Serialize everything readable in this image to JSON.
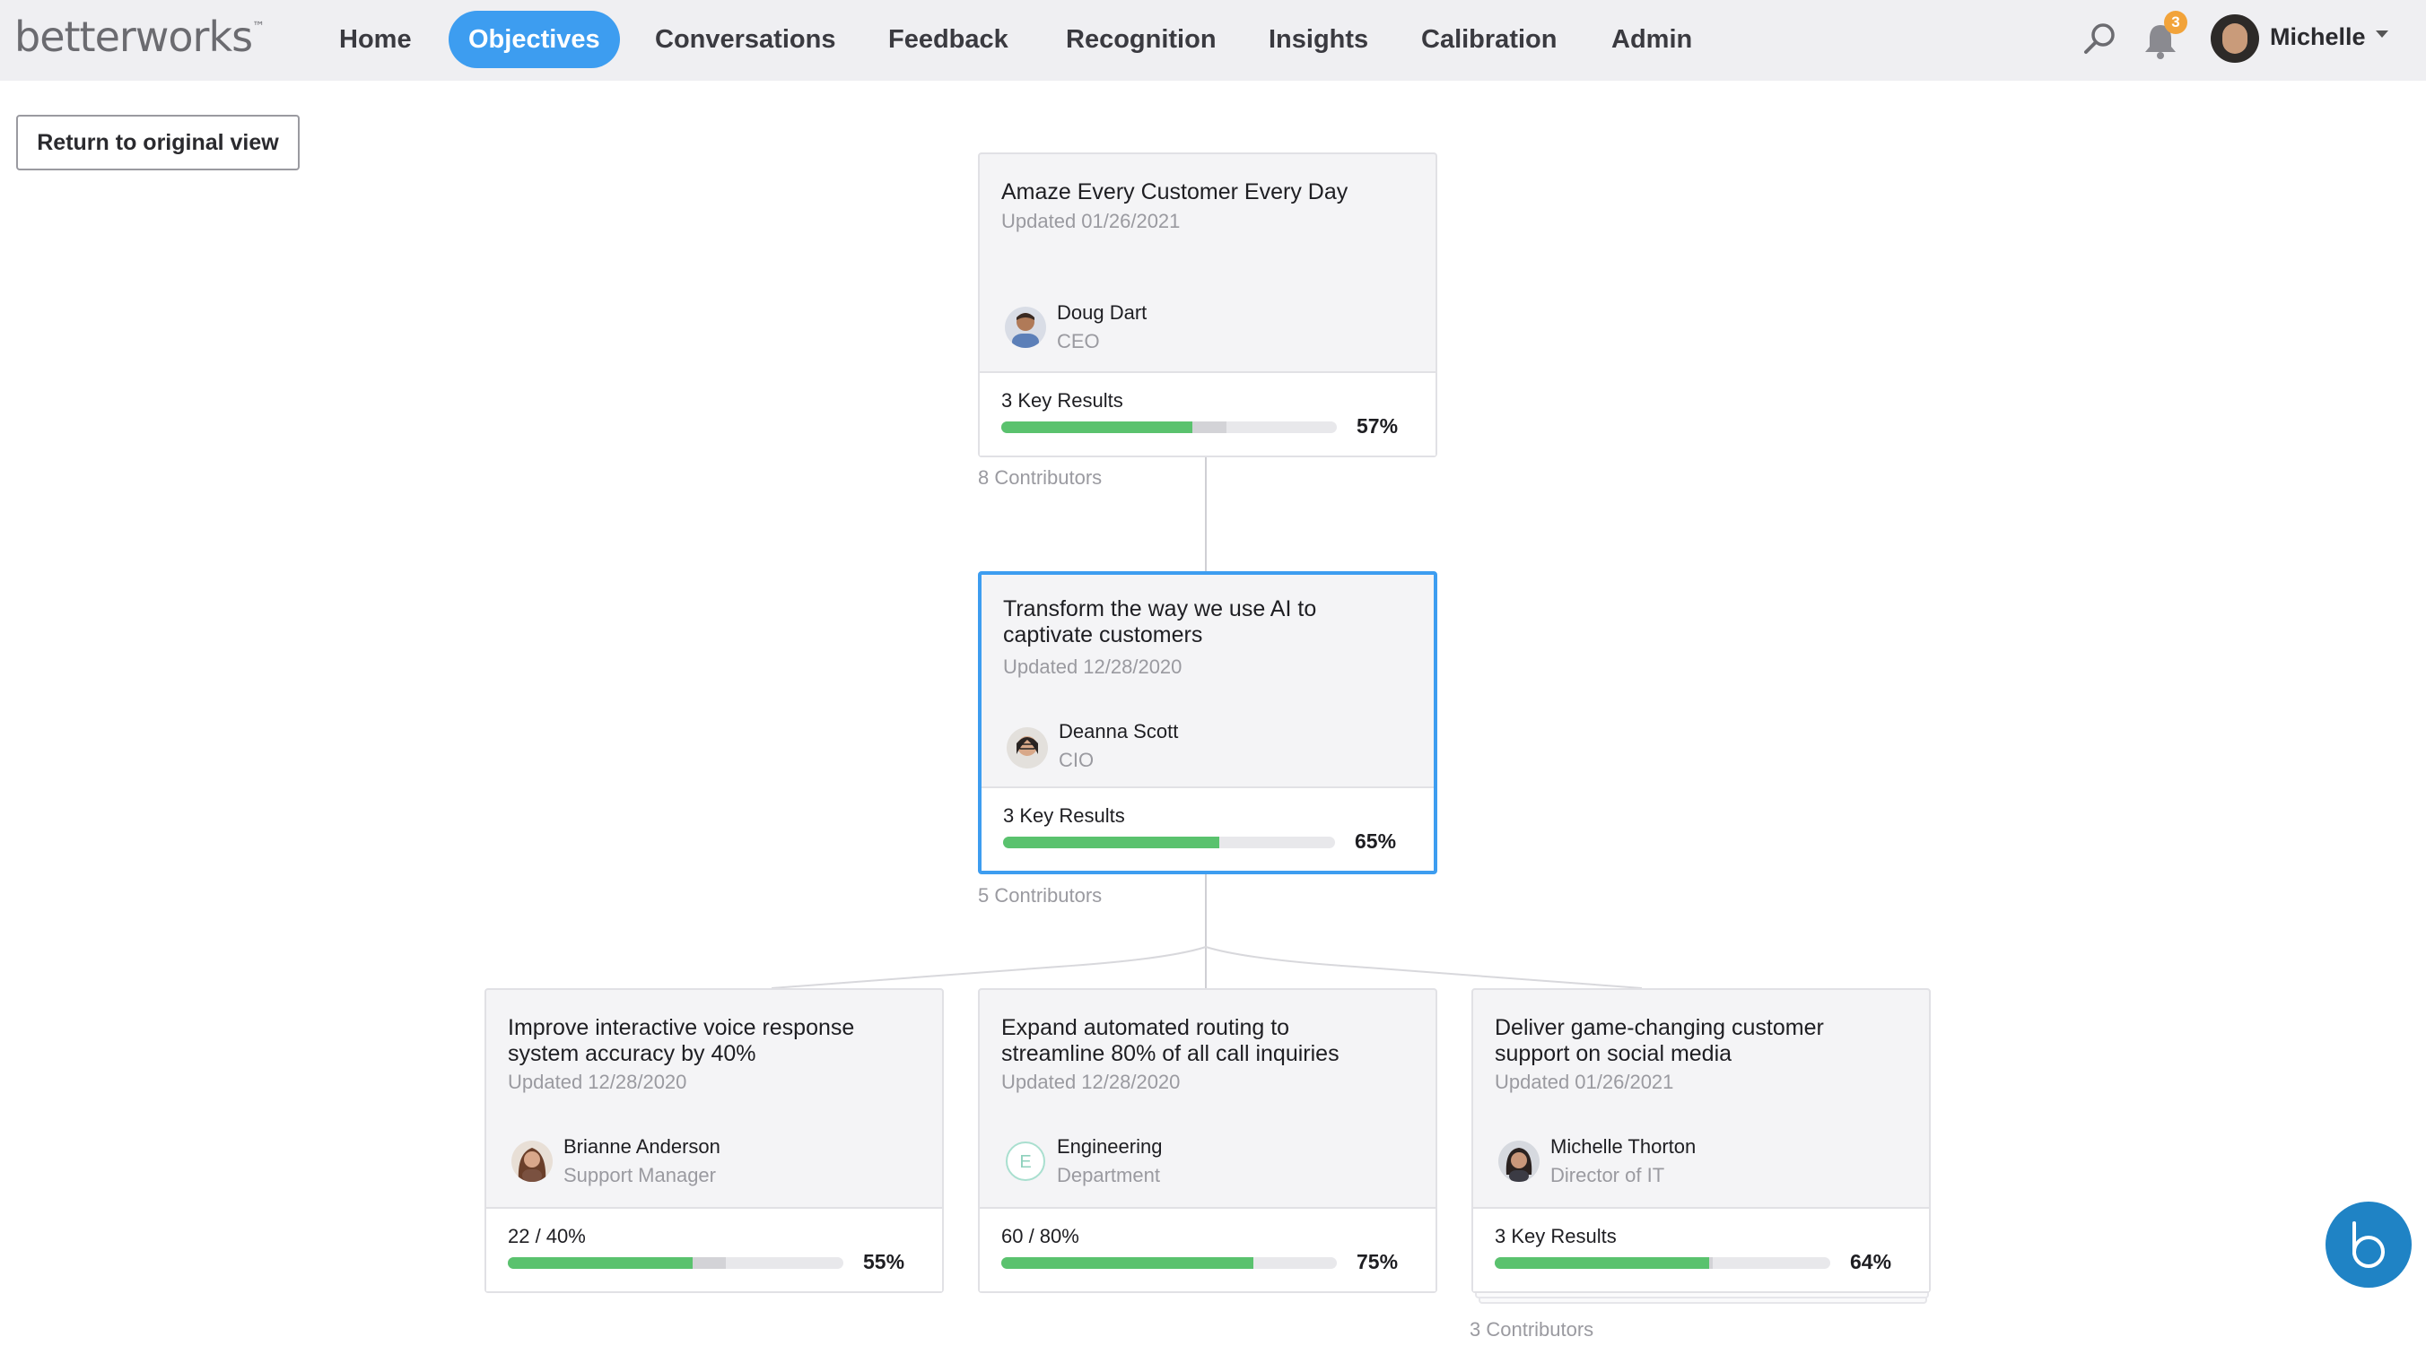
{
  "app": {
    "logo": "betterworks",
    "logo_mark": "™"
  },
  "nav": {
    "items": [
      "Home",
      "Objectives",
      "Conversations",
      "Feedback",
      "Recognition",
      "Insights",
      "Calibration",
      "Admin"
    ],
    "active": "Objectives",
    "notification_count": "3",
    "user_name": "Michelle"
  },
  "return_button": "Return to original view",
  "objectives": {
    "top": {
      "title": "Amaze Every Customer Every Day",
      "updated": "Updated 01/26/2021",
      "owner_name": "Doug Dart",
      "owner_role": "CEO",
      "kr_label": "3 Key Results",
      "progress": 57,
      "progress_text": "57%",
      "contributors": "8 Contributors"
    },
    "middle": {
      "title": "Transform the way we use AI to captivate customers",
      "updated": "Updated 12/28/2020",
      "owner_name": "Deanna Scott",
      "owner_role": "CIO",
      "kr_label": "3 Key Results",
      "progress": 65,
      "progress_text": "65%",
      "contributors": "5 Contributors"
    },
    "children": [
      {
        "title": "Improve interactive voice response system accuracy by 40%",
        "updated": "Updated 12/28/2020",
        "owner_name": "Brianne Anderson",
        "owner_role": "Support Manager",
        "kr_label": "22 / 40%",
        "progress": 55,
        "progress_text": "55%"
      },
      {
        "title": "Expand automated routing to streamline 80% of all call inquiries",
        "updated": "Updated 12/28/2020",
        "owner_name": "Engineering",
        "owner_role": "Department",
        "owner_initial": "E",
        "kr_label": "60 / 80%",
        "progress": 75,
        "progress_text": "75%"
      },
      {
        "title": "Deliver game-changing customer support on social media",
        "updated": "Updated 01/26/2021",
        "owner_name": "Michelle Thorton",
        "owner_role": "Director of IT",
        "kr_label": "3 Key Results",
        "progress": 64,
        "progress_text": "64%",
        "contributors": "3 Contributors"
      }
    ]
  },
  "colors": {
    "accent": "#3d9df0",
    "progress_green": "#5ac26e",
    "badge": "#f2a33a",
    "chat": "#1f83c5"
  }
}
